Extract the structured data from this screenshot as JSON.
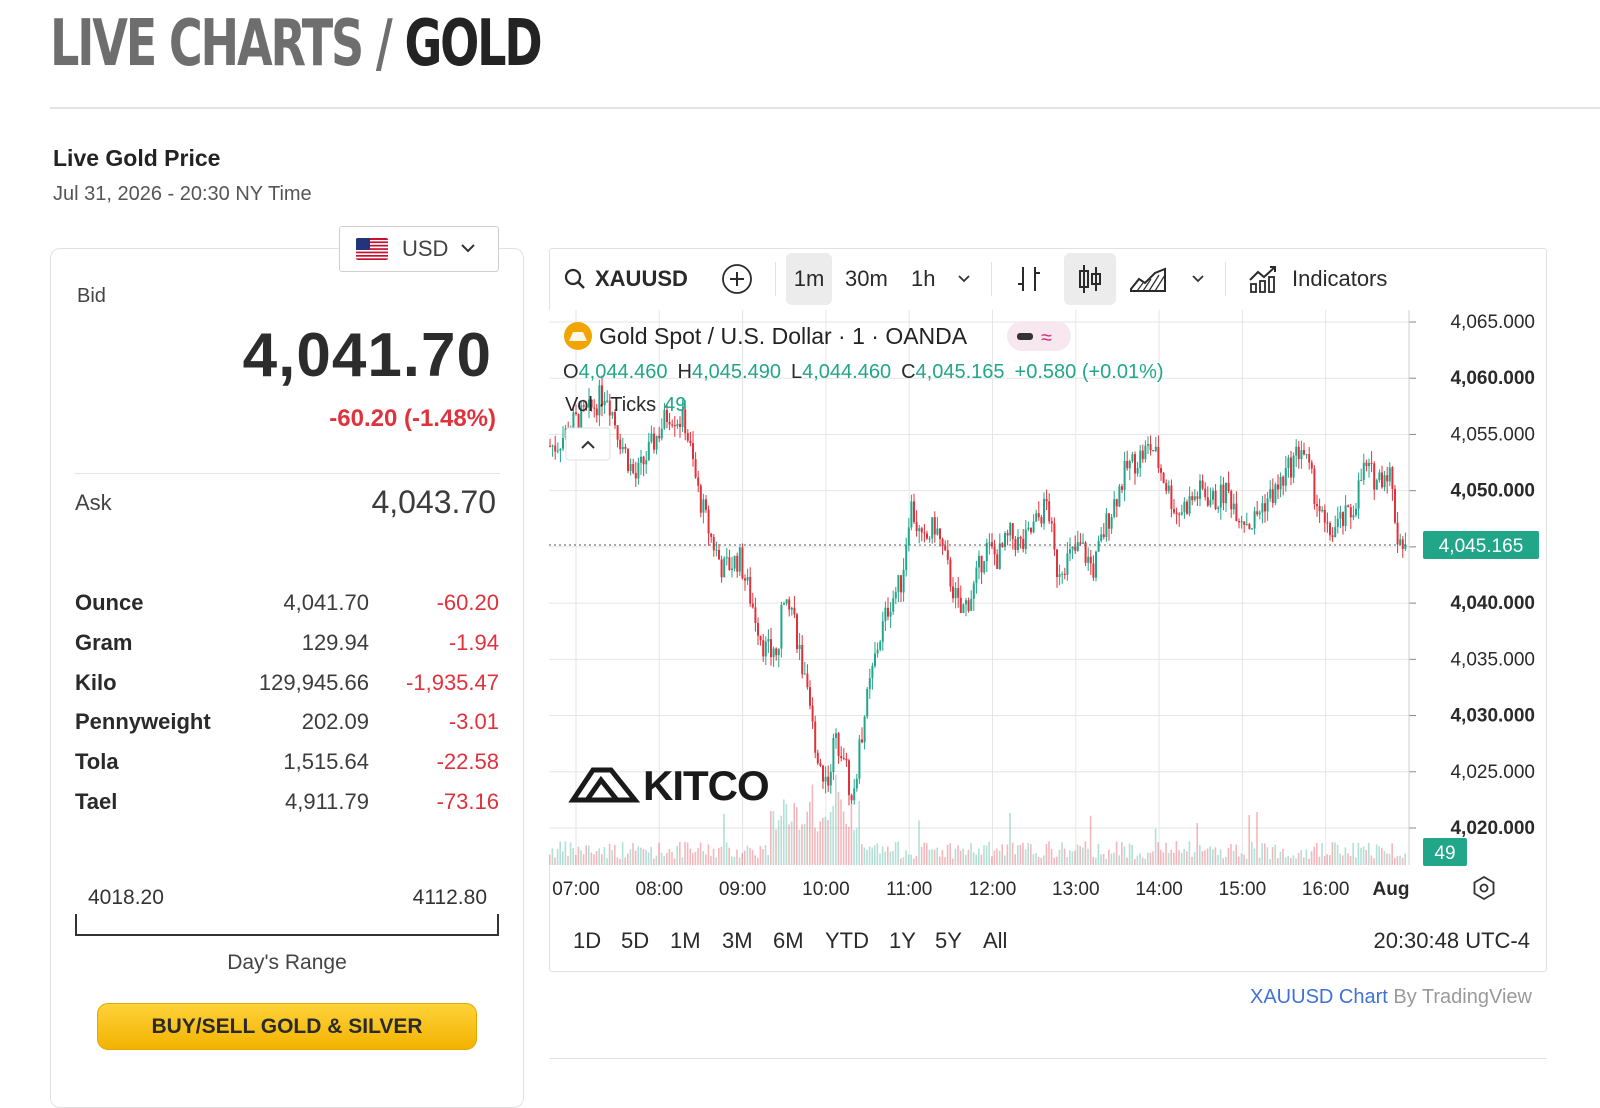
{
  "page": {
    "title_part1": "LIVE CHARTS",
    "title_sep": "/",
    "title_part2": "GOLD",
    "live_title": "Live Gold Price",
    "live_time": "Jul 31, 2026 - 20:30 NY Time"
  },
  "currency": {
    "selected": "USD"
  },
  "bid": {
    "label": "Bid",
    "value": "4,041.70",
    "change": "-60.20 (-1.48%)"
  },
  "ask": {
    "label": "Ask",
    "value": "4,043.70"
  },
  "units": [
    {
      "name": "Ounce",
      "price": "4,041.70",
      "change": "-60.20"
    },
    {
      "name": "Gram",
      "price": "129.94",
      "change": "-1.94"
    },
    {
      "name": "Kilo",
      "price": "129,945.66",
      "change": "-1,935.47"
    },
    {
      "name": "Pennyweight",
      "price": "202.09",
      "change": "-3.01"
    },
    {
      "name": "Tola",
      "price": "1,515.64",
      "change": "-22.58"
    },
    {
      "name": "Tael",
      "price": "4,911.79",
      "change": "-73.16"
    }
  ],
  "range": {
    "low": "4018.20",
    "high": "4112.80",
    "label": "Day's Range"
  },
  "buy_button": "BUY/SELL GOLD & SILVER",
  "toolbar": {
    "symbol": "XAUUSD",
    "intervals": [
      "1m",
      "30m",
      "1h"
    ],
    "active_interval": "1m",
    "indicators_label": "Indicators"
  },
  "legend": {
    "title": "Gold Spot / U.S. Dollar · 1 · OANDA",
    "o_label": "O",
    "o_value": "4,044.460",
    "h_label": "H",
    "h_value": "4,045.490",
    "l_label": "L",
    "l_value": "4,044.460",
    "c_label": "C",
    "c_value": "4,045.165",
    "change": "+0.580 (+0.01%)",
    "vol_label": "Vol · Ticks",
    "vol_value": "49"
  },
  "watermark": "KITCO",
  "periods": [
    "1D",
    "5D",
    "1M",
    "3M",
    "6M",
    "YTD",
    "1Y",
    "5Y",
    "All"
  ],
  "chart_time": "20:30:48 UTC-4",
  "attribution": {
    "link": "XAUUSD Chart",
    "by": "By TradingView"
  },
  "colors": {
    "up": "#22a68a",
    "down": "#e0323c",
    "accent": "#f5b800",
    "link": "#3f72d6"
  },
  "chart_data": {
    "type": "line",
    "symbol": "XAUUSD",
    "interval": "1m",
    "x_ticks": [
      "07:00",
      "08:00",
      "09:00",
      "10:00",
      "11:00",
      "12:00",
      "13:00",
      "14:00",
      "15:00",
      "16:00",
      "Aug"
    ],
    "y_ticks": [
      "4,065.000",
      "4,060.000",
      "4,055.000",
      "4,050.000",
      "4,045.000",
      "4,040.000",
      "4,035.000",
      "4,030.000",
      "4,025.000",
      "4,020.000"
    ],
    "ylim": [
      4019,
      4065
    ],
    "last_price": "4,045.165",
    "last_volume": "49",
    "close_series": [
      {
        "t": 6.75,
        "v": 4054
      },
      {
        "t": 6.95,
        "v": 4056
      },
      {
        "t": 7.15,
        "v": 4057
      },
      {
        "t": 7.35,
        "v": 4059
      },
      {
        "t": 7.5,
        "v": 4055
      },
      {
        "t": 7.7,
        "v": 4051
      },
      {
        "t": 7.9,
        "v": 4054
      },
      {
        "t": 8.1,
        "v": 4057
      },
      {
        "t": 8.3,
        "v": 4056
      },
      {
        "t": 8.45,
        "v": 4050
      },
      {
        "t": 8.6,
        "v": 4046
      },
      {
        "t": 8.75,
        "v": 4043
      },
      {
        "t": 8.95,
        "v": 4044
      },
      {
        "t": 9.1,
        "v": 4040
      },
      {
        "t": 9.25,
        "v": 4036
      },
      {
        "t": 9.4,
        "v": 4035
      },
      {
        "t": 9.5,
        "v": 4042
      },
      {
        "t": 9.6,
        "v": 4039
      },
      {
        "t": 9.75,
        "v": 4032
      },
      {
        "t": 9.9,
        "v": 4026
      },
      {
        "t": 10.0,
        "v": 4024
      },
      {
        "t": 10.1,
        "v": 4028
      },
      {
        "t": 10.2,
        "v": 4027
      },
      {
        "t": 10.3,
        "v": 4022
      },
      {
        "t": 10.45,
        "v": 4030
      },
      {
        "t": 10.6,
        "v": 4036
      },
      {
        "t": 10.75,
        "v": 4040
      },
      {
        "t": 10.9,
        "v": 4042
      },
      {
        "t": 11.0,
        "v": 4049
      },
      {
        "t": 11.15,
        "v": 4045
      },
      {
        "t": 11.3,
        "v": 4047
      },
      {
        "t": 11.45,
        "v": 4043
      },
      {
        "t": 11.6,
        "v": 4039
      },
      {
        "t": 11.75,
        "v": 4041
      },
      {
        "t": 11.9,
        "v": 4045
      },
      {
        "t": 12.05,
        "v": 4044
      },
      {
        "t": 12.2,
        "v": 4046
      },
      {
        "t": 12.35,
        "v": 4045
      },
      {
        "t": 12.5,
        "v": 4047
      },
      {
        "t": 12.65,
        "v": 4049
      },
      {
        "t": 12.75,
        "v": 4043
      },
      {
        "t": 12.9,
        "v": 4044
      },
      {
        "t": 13.05,
        "v": 4045
      },
      {
        "t": 13.2,
        "v": 4043
      },
      {
        "t": 13.35,
        "v": 4047
      },
      {
        "t": 13.5,
        "v": 4050
      },
      {
        "t": 13.6,
        "v": 4052
      },
      {
        "t": 13.75,
        "v": 4053
      },
      {
        "t": 13.9,
        "v": 4054
      },
      {
        "t": 14.05,
        "v": 4051
      },
      {
        "t": 14.2,
        "v": 4048
      },
      {
        "t": 14.35,
        "v": 4049
      },
      {
        "t": 14.5,
        "v": 4050
      },
      {
        "t": 14.65,
        "v": 4049
      },
      {
        "t": 14.8,
        "v": 4050
      },
      {
        "t": 14.95,
        "v": 4048
      },
      {
        "t": 15.1,
        "v": 4047
      },
      {
        "t": 15.25,
        "v": 4049
      },
      {
        "t": 15.4,
        "v": 4050
      },
      {
        "t": 15.55,
        "v": 4052
      },
      {
        "t": 15.7,
        "v": 4054
      },
      {
        "t": 15.85,
        "v": 4050
      },
      {
        "t": 16.0,
        "v": 4046
      },
      {
        "t": 16.15,
        "v": 4047
      },
      {
        "t": 16.3,
        "v": 4048
      },
      {
        "t": 16.45,
        "v": 4052
      },
      {
        "t": 16.6,
        "v": 4051
      },
      {
        "t": 16.75,
        "v": 4052
      },
      {
        "t": 16.85,
        "v": 4046
      },
      {
        "t": 16.95,
        "v": 4045.165
      }
    ]
  }
}
